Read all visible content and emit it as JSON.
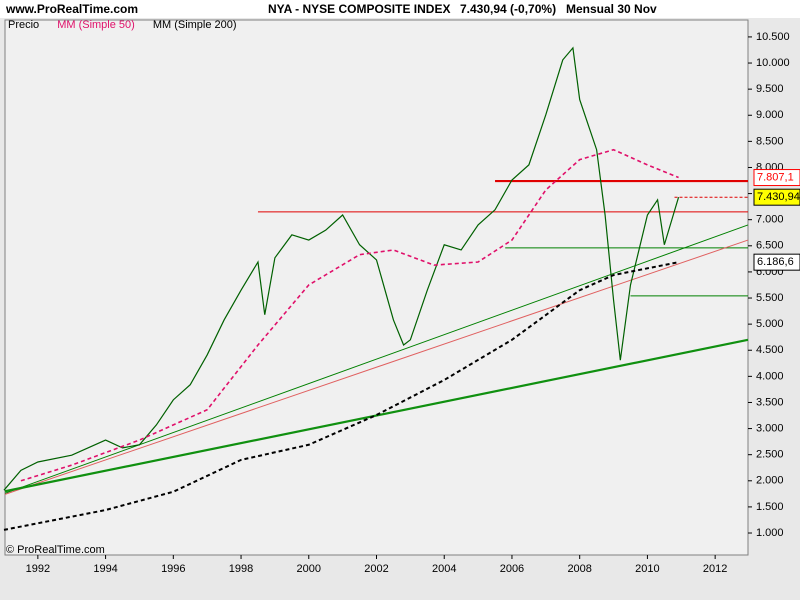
{
  "chart_data": {
    "type": "line",
    "site": "www.ProRealTime.com",
    "title": "NYA - NYSE COMPOSITE INDEX",
    "subtitle": "7.430,94 (-0,70%)",
    "period": "Mensual  30 Nov",
    "footer": "© ProRealTime.com",
    "xlim": [
      1991.03,
      2012.97
    ],
    "ylim": [
      579,
      10824
    ],
    "xticks": [
      1992,
      1994,
      1996,
      1998,
      2000,
      2002,
      2004,
      2006,
      2008,
      2010,
      2012
    ],
    "yticks": [
      {
        "value": 1000,
        "label": "1.000"
      },
      {
        "value": 1500,
        "label": "1.500"
      },
      {
        "value": 2000,
        "label": "2.000"
      },
      {
        "value": 2500,
        "label": "2.500"
      },
      {
        "value": 3000,
        "label": "3.000"
      },
      {
        "value": 3500,
        "label": "3.500"
      },
      {
        "value": 4000,
        "label": "4.000"
      },
      {
        "value": 4500,
        "label": "4.500"
      },
      {
        "value": 5000,
        "label": "5.000"
      },
      {
        "value": 5500,
        "label": "5.500"
      },
      {
        "value": 6000,
        "label": "6.000"
      },
      {
        "value": 6500,
        "label": "6.500"
      },
      {
        "value": 7000,
        "label": "7.000"
      },
      {
        "value": 7500,
        "label": "7.500"
      },
      {
        "value": 8000,
        "label": "8.000"
      },
      {
        "value": 8500,
        "label": "8.500"
      },
      {
        "value": 9000,
        "label": "9.000"
      },
      {
        "value": 9500,
        "label": "9.500"
      },
      {
        "value": 10000,
        "label": "10.000"
      },
      {
        "value": 10500,
        "label": "10.500"
      }
    ],
    "series": [
      {
        "name": "Precio",
        "color": "#006000",
        "dash": false,
        "width": 1.2,
        "x": [
          1991.0,
          1991.5,
          1992,
          1993,
          1994,
          1994.5,
          1995,
          1995.5,
          1996,
          1996.5,
          1997,
          1997.5,
          1998,
          1998.5,
          1998.7,
          1999,
          1999.5,
          2000,
          2000.5,
          2001,
          2001.5,
          2002,
          2002.5,
          2002.8,
          2003,
          2003.5,
          2004,
          2004.5,
          2005,
          2005.5,
          2006,
          2006.5,
          2007,
          2007.5,
          2007.8,
          2008,
          2008.5,
          2008.75,
          2009,
          2009.2,
          2009.5,
          2010,
          2010.3,
          2010.5,
          2010.92
        ],
        "values": [
          1820,
          2200,
          2360,
          2490,
          2780,
          2630,
          2690,
          3070,
          3550,
          3840,
          4410,
          5080,
          5650,
          6190,
          5180,
          6270,
          6710,
          6610,
          6800,
          7090,
          6520,
          6230,
          5080,
          4600,
          4700,
          5650,
          6520,
          6420,
          6900,
          7190,
          7760,
          8050,
          9010,
          10060,
          10290,
          9300,
          8340,
          7090,
          5460,
          4310,
          5750,
          7090,
          7380,
          6520,
          7430.94
        ]
      },
      {
        "name": "MM (Simple 50)",
        "color": "#e0106a",
        "dash": true,
        "width": 1.6,
        "x": [
          1991.5,
          1993,
          1995,
          1997,
          1998.5,
          2000,
          2001.5,
          2002.5,
          2003.7,
          2005,
          2006,
          2007,
          2008,
          2009,
          2010,
          2010.92
        ],
        "values": [
          2000,
          2300,
          2780,
          3360,
          4600,
          5750,
          6330,
          6420,
          6130,
          6190,
          6610,
          7570,
          8150,
          8340,
          8050,
          7807.1
        ]
      },
      {
        "name": "MM (Simple 200)",
        "color": "#000000",
        "dash": true,
        "width": 2,
        "x": [
          1991.0,
          1994,
          1996,
          1998,
          2000,
          2002,
          2004,
          2006,
          2008,
          2009,
          2010.92
        ],
        "values": [
          1060,
          1440,
          1790,
          2400,
          2690,
          3260,
          3930,
          4700,
          5650,
          5940,
          6186.6
        ]
      }
    ],
    "annotations": [
      {
        "value": 7807.1,
        "label": "7.807,1",
        "color": "#ff0000",
        "text_color": "#ff0000",
        "fill": "#ffffff"
      },
      {
        "value": 7430.94,
        "label": "7.430,94",
        "color": "#000000",
        "text_color": "#000000",
        "fill": "#ffff00"
      },
      {
        "value": 6186.6,
        "label": "6.186,6",
        "color": "#000000",
        "text_color": "#000000",
        "fill": "#ffffff"
      }
    ],
    "lines": [
      {
        "x": [
          2005.5,
          2012.97
        ],
        "y": [
          7740,
          7740
        ],
        "color": "#e00000",
        "width": 2.2,
        "dash": false
      },
      {
        "x": [
          1998.5,
          2012.97
        ],
        "y": [
          7150,
          7150
        ],
        "color": "#e00000",
        "width": 1,
        "dash": false
      },
      {
        "x": [
          2005.8,
          2012.97
        ],
        "y": [
          6460,
          6460
        ],
        "color": "#008000",
        "width": 1,
        "dash": false
      },
      {
        "x": [
          2009.5,
          2012.97
        ],
        "y": [
          5540,
          5540
        ],
        "color": "#008000",
        "width": 1,
        "dash": false
      },
      {
        "x": [
          2010.8,
          2012.97
        ],
        "y": [
          7430.94,
          7430.94
        ],
        "color": "#e00000",
        "width": 1,
        "dash": true
      },
      {
        "x": [
          1991.03,
          2012.97
        ],
        "y": [
          1760,
          6900
        ],
        "color": "#008000",
        "width": 1,
        "dash": false
      },
      {
        "x": [
          1991.03,
          2012.97
        ],
        "y": [
          1740,
          6610
        ],
        "color": "#e06060",
        "width": 1,
        "dash": false
      },
      {
        "x": [
          1991.03,
          2012.97
        ],
        "y": [
          1800,
          4700
        ],
        "color": "#109010",
        "width": 2.2,
        "dash": false
      }
    ]
  }
}
